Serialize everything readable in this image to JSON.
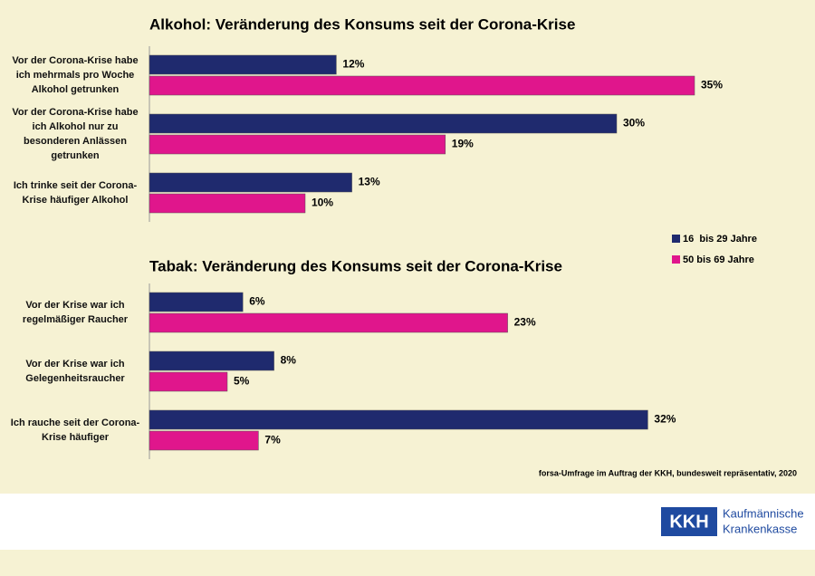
{
  "chart_data": [
    {
      "type": "bar",
      "orientation": "horizontal",
      "title": "Alkohol: Veränderung des Konsums seit der Corona-Krise",
      "categories": [
        "Vor der Corona-Krise habe ich mehrmals pro Woche Alkohol getrunken",
        "Vor der Corona-Krise habe ich Alkohol nur zu besonderen Anlässen getrunken",
        "Ich trinke seit der Corona-Krise häufiger Alkohol"
      ],
      "series": [
        {
          "name": "16  bis 29 Jahre",
          "color": "#1f2a6e",
          "values": [
            12,
            30,
            13
          ],
          "value_labels": [
            "12%",
            "30%",
            "13%"
          ]
        },
        {
          "name": "50 bis 69 Jahre",
          "color": "#e0168c",
          "values": [
            35,
            19,
            10
          ],
          "value_labels": [
            "35%",
            "19%",
            "10%"
          ]
        }
      ]
    },
    {
      "type": "bar",
      "orientation": "horizontal",
      "title": "Tabak: Veränderung des Konsums seit der Corona-Krise",
      "categories": [
        "Vor der Krise war ich regelmäßiger Raucher",
        "Vor der Krise war ich Gelegenheitsraucher",
        "Ich rauche seit der Corona-Krise häufiger"
      ],
      "series": [
        {
          "color": "#1f2a6e",
          "values": [
            6,
            8,
            32
          ],
          "value_labels": [
            "6%",
            "8%",
            "32%"
          ]
        },
        {
          "color": "#e0168c",
          "values": [
            23,
            5,
            7
          ],
          "value_labels": [
            "23%",
            "5%",
            "7%"
          ]
        }
      ]
    }
  ],
  "source": "forsa-Umfrage im Auftrag der KKH, bundesweit repräsentativ, 2020",
  "logo": {
    "abbr": "KKH",
    "line1": "Kaufmännische",
    "line2": "Krankenkasse"
  }
}
